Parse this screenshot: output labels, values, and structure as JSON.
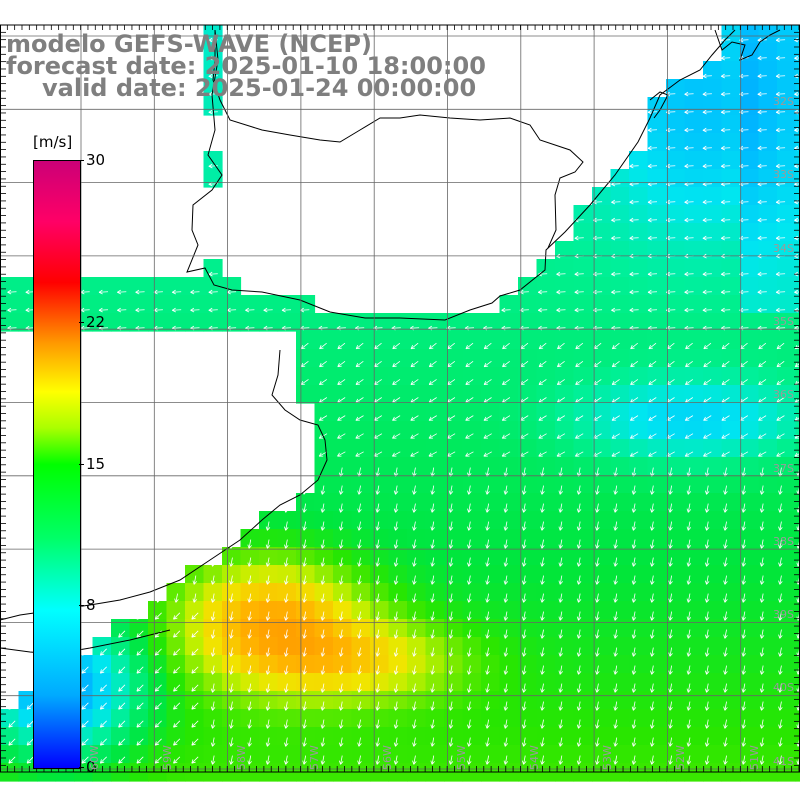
{
  "title": {
    "line1": "modelo GEFS-WAVE (NCEP)",
    "line2": "forecast date: 2025-01-10 18:00:00",
    "line3": "valid date: 2025-01-24 00:00:00"
  },
  "colorbar": {
    "unit": "[m/s]",
    "ticks": [
      "30",
      "22",
      "15",
      "8",
      "0"
    ],
    "tick_values": [
      30,
      22,
      15,
      8,
      0
    ],
    "min": 0,
    "max": 30
  },
  "lat_labels": [
    "32S",
    "33S",
    "34S",
    "35S",
    "36S",
    "37S",
    "38S",
    "39S",
    "40S",
    "41S"
  ],
  "lon_labels": [
    "60W",
    "59W",
    "58W",
    "57W",
    "56W",
    "55W",
    "54W",
    "53W",
    "52W",
    "51W"
  ],
  "colors": {
    "land": "#ffffff",
    "coast": "#000000",
    "grid": "#666666",
    "arrow": "#ffffff",
    "title_text": "#7f7f7f"
  }
}
